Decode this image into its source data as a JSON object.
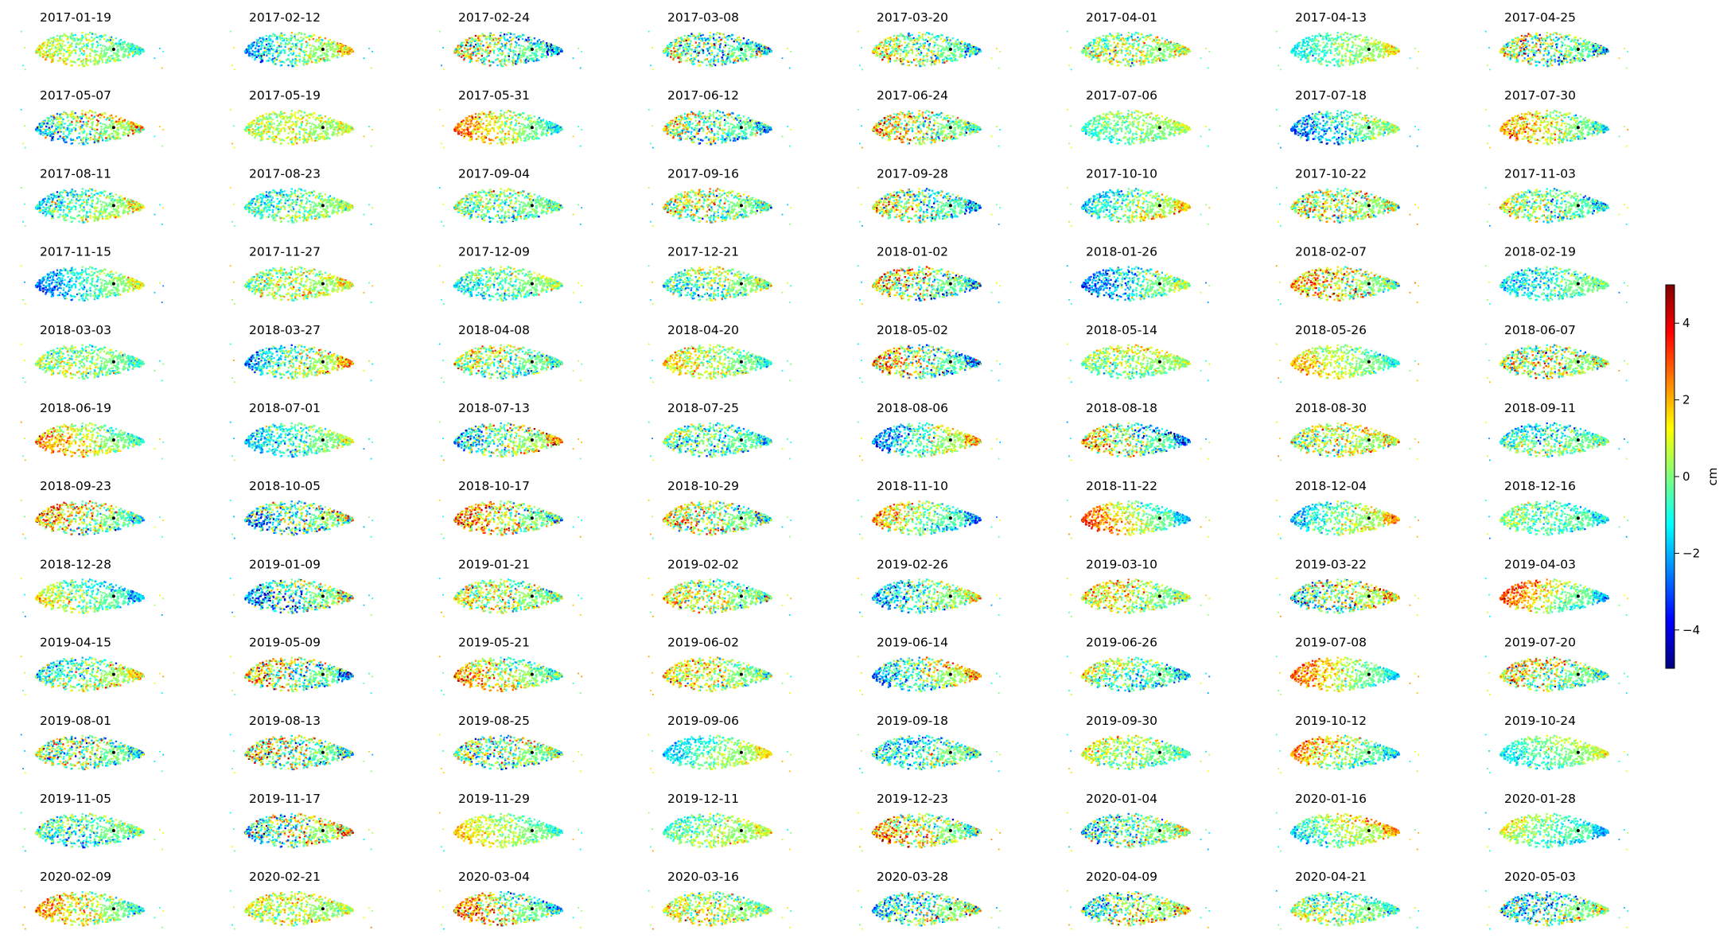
{
  "chart_data": {
    "type": "scatter",
    "layout": {
      "rows": 12,
      "cols": 8
    },
    "panels": [
      "2017-01-19",
      "2017-02-12",
      "2017-02-24",
      "2017-03-08",
      "2017-03-20",
      "2017-04-01",
      "2017-04-13",
      "2017-04-25",
      "2017-05-07",
      "2017-05-19",
      "2017-05-31",
      "2017-06-12",
      "2017-06-24",
      "2017-07-06",
      "2017-07-18",
      "2017-07-30",
      "2017-08-11",
      "2017-08-23",
      "2017-09-04",
      "2017-09-16",
      "2017-09-28",
      "2017-10-10",
      "2017-10-22",
      "2017-11-03",
      "2017-11-15",
      "2017-11-27",
      "2017-12-09",
      "2017-12-21",
      "2018-01-02",
      "2018-01-26",
      "2018-02-07",
      "2018-02-19",
      "2018-03-03",
      "2018-03-27",
      "2018-04-08",
      "2018-04-20",
      "2018-05-02",
      "2018-05-14",
      "2018-05-26",
      "2018-06-07",
      "2018-06-19",
      "2018-07-01",
      "2018-07-13",
      "2018-07-25",
      "2018-08-06",
      "2018-08-18",
      "2018-08-30",
      "2018-09-11",
      "2018-09-23",
      "2018-10-05",
      "2018-10-17",
      "2018-10-29",
      "2018-11-10",
      "2018-11-22",
      "2018-12-04",
      "2018-12-16",
      "2018-12-28",
      "2019-01-09",
      "2019-01-21",
      "2019-02-02",
      "2019-02-26",
      "2019-03-10",
      "2019-03-22",
      "2019-04-03",
      "2019-04-15",
      "2019-05-09",
      "2019-05-21",
      "2019-06-02",
      "2019-06-14",
      "2019-06-26",
      "2019-07-08",
      "2019-07-20",
      "2019-08-01",
      "2019-08-13",
      "2019-08-25",
      "2019-09-06",
      "2019-09-18",
      "2019-09-30",
      "2019-10-12",
      "2019-10-24",
      "2019-11-05",
      "2019-11-17",
      "2019-11-29",
      "2019-12-11",
      "2019-12-23",
      "2020-01-04",
      "2020-01-16",
      "2020-01-28",
      "2020-02-09",
      "2020-02-21",
      "2020-03-04",
      "2020-03-16",
      "2020-03-28",
      "2020-04-09",
      "2020-04-21",
      "2020-05-03"
    ],
    "colorbar": {
      "label": "cm",
      "colormap": "jet",
      "vmin": -5,
      "vmax": 5,
      "ticks": [
        -4,
        -2,
        0,
        2,
        4
      ],
      "tick_labels": [
        "−4",
        "−2",
        "0",
        "2",
        "4"
      ]
    },
    "grid": false,
    "axes_visible": false,
    "reference_point_color": "#000000"
  }
}
